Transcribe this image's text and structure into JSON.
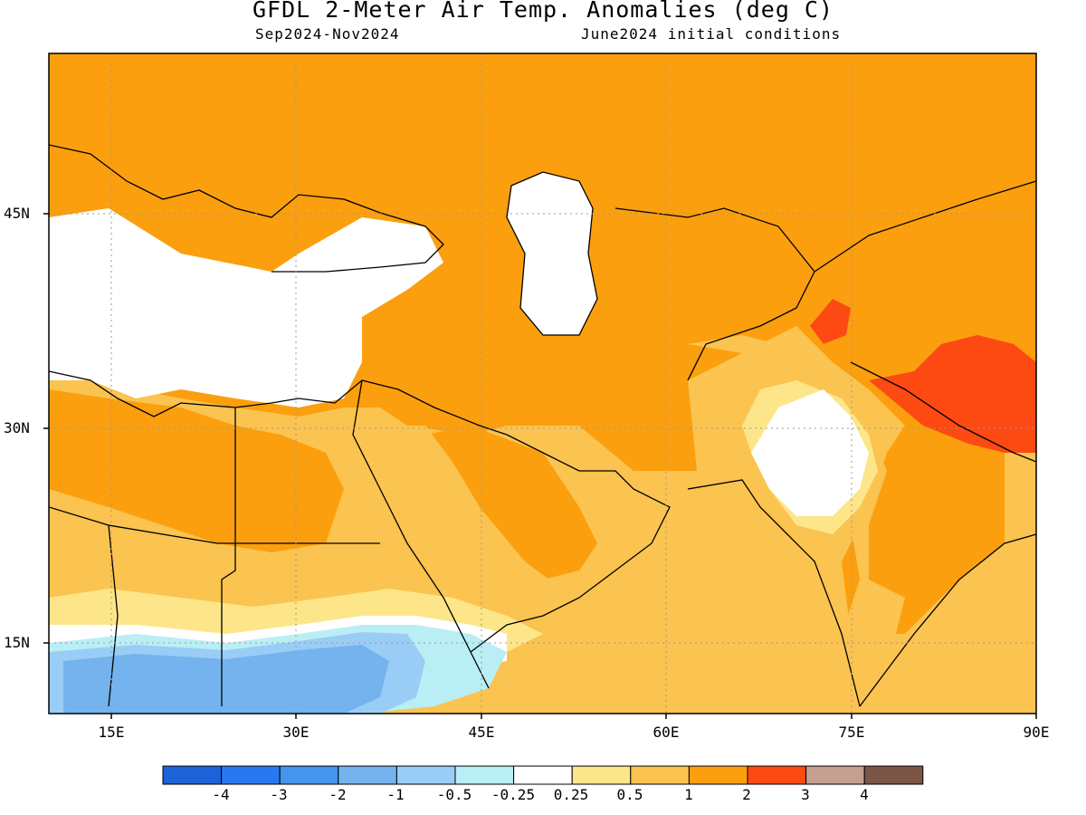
{
  "title": "GFDL 2-Meter Air Temp. Anomalies (deg C)",
  "period": "Sep2024-Nov2024",
  "init": "June2024 initial conditions",
  "latitudes": [
    {
      "label": "45N"
    },
    {
      "label": "30N"
    },
    {
      "label": "15N"
    }
  ],
  "longitudes": [
    {
      "label": "15E"
    },
    {
      "label": "30E"
    },
    {
      "label": "45E"
    },
    {
      "label": "60E"
    },
    {
      "label": "75E"
    },
    {
      "label": "90E"
    }
  ],
  "colorbar": {
    "colors": [
      "#1f63d8",
      "#2a78f0",
      "#4594ee",
      "#74b3ee",
      "#99cdf6",
      "#b9eef5",
      "#ffffff",
      "#fde68a",
      "#fbc34f",
      "#fb9f0e",
      "#fc4a12",
      "#c59f90",
      "#7b5646"
    ],
    "labels": [
      "-4",
      "-3",
      "-2",
      "-1",
      "-0.5",
      "-0.25",
      "0.25",
      "0.5",
      "1",
      "2",
      "3",
      "4"
    ]
  },
  "legend_colors": {
    "anomaly_2": "#fb9f0e",
    "anomaly_1": "#fbc34f",
    "anomaly_05": "#fde68a",
    "anomaly_3": "#fc4a12",
    "neutral": "#ffffff",
    "cool_1": "#74b3ee",
    "cool_05": "#99cdf6",
    "cool_025": "#b9eef5"
  }
}
